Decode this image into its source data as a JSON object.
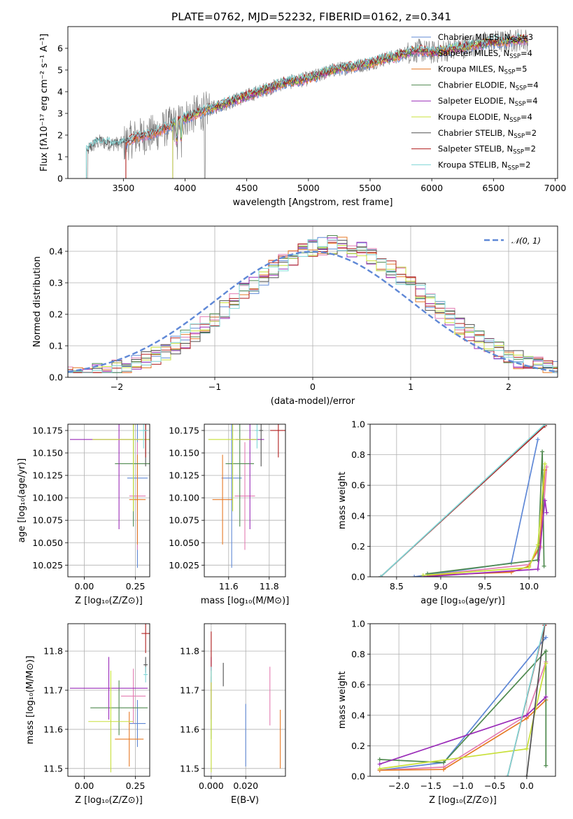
{
  "colors": {
    "chabrier_miles": "#5f88d6",
    "salpeter_miles": "#e37cb2",
    "kroupa_miles": "#e67a26",
    "chabrier_elodie": "#4f8a4f",
    "salpeter_elodie": "#9a2bb8",
    "kroupa_elodie": "#c8e03a",
    "chabrier_stelib": "#505050",
    "salpeter_stelib": "#b01e1e",
    "kroupa_stelib": "#7ed6d6",
    "data": "#808080",
    "normal": "#5f88d6"
  },
  "chart_data": [
    {
      "id": "spectrum",
      "type": "line",
      "title": "PLATE=0762, MJD=52232, FIBERID=0162, z=0.341",
      "xlabel": "wavelength [Angstrom, rest frame]",
      "ylabel": "Flux [fλ10⁻¹⁷ erg cm⁻² s⁻¹ A⁻¹]",
      "xlim": [
        3050,
        7020
      ],
      "ylim": [
        0,
        7
      ],
      "xticks": [
        3500,
        4000,
        4500,
        5000,
        5500,
        6000,
        6500,
        7000
      ],
      "yticks": [
        0,
        1,
        2,
        3,
        4,
        5,
        6
      ],
      "grid": false,
      "continuum": [
        [
          3200,
          1.3
        ],
        [
          3300,
          1.7
        ],
        [
          3400,
          1.6
        ],
        [
          3500,
          1.6
        ],
        [
          3600,
          1.9
        ],
        [
          3700,
          2.0
        ],
        [
          3800,
          2.2
        ],
        [
          3900,
          2.5
        ],
        [
          4000,
          2.8
        ],
        [
          4100,
          3.0
        ],
        [
          4200,
          3.2
        ],
        [
          4300,
          3.4
        ],
        [
          4400,
          3.6
        ],
        [
          4500,
          3.8
        ],
        [
          4600,
          4.0
        ],
        [
          4700,
          4.2
        ],
        [
          4800,
          4.4
        ],
        [
          4900,
          4.5
        ],
        [
          5000,
          4.6
        ],
        [
          5100,
          4.8
        ],
        [
          5200,
          5.0
        ],
        [
          5300,
          5.1
        ],
        [
          5400,
          5.2
        ],
        [
          5500,
          5.3
        ],
        [
          5600,
          5.5
        ],
        [
          5700,
          5.6
        ],
        [
          5800,
          5.8
        ],
        [
          5900,
          5.9
        ],
        [
          6000,
          5.8
        ],
        [
          6100,
          5.9
        ],
        [
          6200,
          6.0
        ],
        [
          6300,
          6.1
        ],
        [
          6400,
          6.2
        ],
        [
          6500,
          6.3
        ],
        [
          6600,
          6.3
        ],
        [
          6700,
          6.4
        ],
        [
          6780,
          6.4
        ]
      ],
      "legend": [
        {
          "label": "Chabrier MILES, N",
          "sub": "SSP",
          "suffix": "=3",
          "color_key": "chabrier_miles"
        },
        {
          "label": "Salpeter MILES, N",
          "sub": "SSP",
          "suffix": "=4",
          "color_key": "salpeter_miles"
        },
        {
          "label": "Kroupa MILES, N",
          "sub": "SSP",
          "suffix": "=5",
          "color_key": "kroupa_miles"
        },
        {
          "label": "Chabrier ELODIE, N",
          "sub": "SSP",
          "suffix": "=4",
          "color_key": "chabrier_elodie"
        },
        {
          "label": "Salpeter ELODIE, N",
          "sub": "SSP",
          "suffix": "=4",
          "color_key": "salpeter_elodie"
        },
        {
          "label": "Kroupa ELODIE, N",
          "sub": "SSP",
          "suffix": "=4",
          "color_key": "kroupa_elodie"
        },
        {
          "label": "Chabrier STELIB, N",
          "sub": "SSP",
          "suffix": "=2",
          "color_key": "chabrier_stelib"
        },
        {
          "label": "Salpeter STELIB, N",
          "sub": "SSP",
          "suffix": "=2",
          "color_key": "salpeter_stelib"
        },
        {
          "label": "Kroupa STELIB, N",
          "sub": "SSP",
          "suffix": "=2",
          "color_key": "kroupa_stelib"
        }
      ]
    },
    {
      "id": "residuals",
      "type": "step-histogram",
      "xlabel": "(data-model)/error",
      "ylabel": "Normed distribution",
      "xlim": [
        -2.5,
        2.5
      ],
      "ylim": [
        0,
        0.48
      ],
      "xticks": [
        -2,
        -1,
        0,
        1,
        2
      ],
      "yticks": [
        0.0,
        0.1,
        0.2,
        0.3,
        0.4
      ],
      "grid": true,
      "legend": [
        {
          "label": "𝒩(0, 1)",
          "color_key": "normal"
        }
      ],
      "normal": {
        "mean": 0,
        "sigma": 1
      }
    },
    {
      "id": "age_vs_Z",
      "type": "errorbar",
      "xlabel": "Z [log₁₀(Z/Z⊙)]",
      "ylabel": "age  [log₁₀(age/yr)]",
      "xlim": [
        -0.08,
        0.32
      ],
      "ylim": [
        10.012,
        10.182
      ],
      "xticks": [
        0.0,
        0.25
      ],
      "yticks": [
        10.025,
        10.05,
        10.075,
        10.1,
        10.125,
        10.15,
        10.175
      ],
      "grid": true,
      "points": [
        {
          "k": "chabrier_miles",
          "x": 0.26,
          "y": 10.122,
          "xerr": 0.05,
          "yerr": 0.1
        },
        {
          "k": "salpeter_miles",
          "x": 0.26,
          "y": 10.102,
          "xerr": 0.04,
          "yerr": 0.06
        },
        {
          "k": "kroupa_miles",
          "x": 0.26,
          "y": 10.098,
          "xerr": 0.04,
          "yerr": 0.05
        },
        {
          "k": "chabrier_elodie",
          "x": 0.24,
          "y": 10.138,
          "xerr": 0.09,
          "yerr": 0.07
        },
        {
          "k": "salpeter_elodie",
          "x": 0.17,
          "y": 10.165,
          "xerr": 0.24,
          "yerr": 0.1
        },
        {
          "k": "kroupa_elodie",
          "x": 0.24,
          "y": 10.165,
          "xerr": 0.2,
          "yerr": 0.08
        },
        {
          "k": "chabrier_stelib",
          "x": 0.3,
          "y": 10.175,
          "xerr": 0.01,
          "yerr": 0.04
        },
        {
          "k": "salpeter_stelib",
          "x": 0.3,
          "y": 10.175,
          "xerr": 0.01,
          "yerr": 0.03
        },
        {
          "k": "kroupa_stelib",
          "x": 0.29,
          "y": 10.175,
          "xerr": 0.02,
          "yerr": 0.02
        }
      ]
    },
    {
      "id": "age_vs_mass",
      "type": "errorbar",
      "xlabel": "mass [log₁₀(M/M⊙)]",
      "ylabel": "",
      "xlim": [
        11.48,
        11.88
      ],
      "ylim": [
        10.012,
        10.182
      ],
      "xticks": [
        11.6,
        11.8
      ],
      "yticks": [
        10.025,
        10.05,
        10.075,
        10.1,
        10.125,
        10.15,
        10.175
      ],
      "grid": true,
      "points": [
        {
          "k": "chabrier_miles",
          "x": 11.615,
          "y": 10.122,
          "xerr": 0.05,
          "yerr": 0.1
        },
        {
          "k": "salpeter_miles",
          "x": 11.68,
          "y": 10.102,
          "xerr": 0.05,
          "yerr": 0.06
        },
        {
          "k": "kroupa_miles",
          "x": 11.57,
          "y": 10.098,
          "xerr": 0.05,
          "yerr": 0.05
        },
        {
          "k": "chabrier_elodie",
          "x": 11.655,
          "y": 10.138,
          "xerr": 0.07,
          "yerr": 0.07
        },
        {
          "k": "salpeter_elodie",
          "x": 11.705,
          "y": 10.165,
          "xerr": 0.07,
          "yerr": 0.1
        },
        {
          "k": "kroupa_elodie",
          "x": 11.62,
          "y": 10.165,
          "xerr": 0.12,
          "yerr": 0.08
        },
        {
          "k": "chabrier_stelib",
          "x": 11.76,
          "y": 10.175,
          "xerr": 0.01,
          "yerr": 0.04
        },
        {
          "k": "salpeter_stelib",
          "x": 11.845,
          "y": 10.175,
          "xerr": 0.04,
          "yerr": 0.03
        },
        {
          "k": "kroupa_stelib",
          "x": 11.74,
          "y": 10.175,
          "xerr": 0.01,
          "yerr": 0.02
        }
      ]
    },
    {
      "id": "weight_vs_age",
      "type": "line",
      "xlabel": "age  [log₁₀(age/yr)]",
      "ylabel": "mass weight",
      "xlim": [
        8.2,
        10.3
      ],
      "ylim": [
        0,
        1.0
      ],
      "xticks": [
        8.5,
        9.0,
        9.5,
        10.0
      ],
      "yticks": [
        0.0,
        0.2,
        0.4,
        0.6,
        0.8,
        1.0
      ],
      "grid": true,
      "series": [
        {
          "k": "chabrier_miles",
          "x": [
            8.7,
            9.8,
            10.1
          ],
          "y": [
            0.0,
            0.09,
            0.9
          ]
        },
        {
          "k": "salpeter_miles",
          "x": [
            8.85,
            10.0,
            10.13,
            10.2
          ],
          "y": [
            0.01,
            0.08,
            0.19,
            0.72
          ]
        },
        {
          "k": "kroupa_miles",
          "x": [
            8.85,
            9.8,
            10.0,
            10.12,
            10.18
          ],
          "y": [
            0.01,
            0.03,
            0.07,
            0.2,
            0.7
          ]
        },
        {
          "k": "chabrier_elodie",
          "x": [
            8.85,
            10.1,
            10.15,
            10.17
          ],
          "y": [
            0.02,
            0.11,
            0.82,
            0.07
          ]
        },
        {
          "k": "salpeter_elodie",
          "x": [
            8.8,
            10.1,
            10.18,
            10.2
          ],
          "y": [
            0.0,
            0.05,
            0.5,
            0.42
          ]
        },
        {
          "k": "kroupa_elodie",
          "x": [
            8.8,
            10.0,
            10.1,
            10.18
          ],
          "y": [
            0.01,
            0.06,
            0.21,
            0.74
          ]
        },
        {
          "k": "chabrier_stelib",
          "x": [
            8.32,
            10.18
          ],
          "y": [
            0.0,
            0.99
          ]
        },
        {
          "k": "salpeter_stelib",
          "x": [
            8.32,
            10.18
          ],
          "y": [
            0.0,
            0.99
          ]
        },
        {
          "k": "kroupa_stelib",
          "x": [
            8.32,
            10.18
          ],
          "y": [
            0.0,
            1.0
          ]
        }
      ]
    },
    {
      "id": "mass_vs_Z",
      "type": "errorbar",
      "xlabel": "Z [log₁₀(Z/Z⊙)]",
      "ylabel": "mass [log₁₀(M/M⊙)]",
      "xlim": [
        -0.08,
        0.32
      ],
      "ylim": [
        11.48,
        11.87
      ],
      "xticks": [
        0.0,
        0.25
      ],
      "yticks": [
        11.5,
        11.6,
        11.7,
        11.8
      ],
      "grid": true,
      "points": [
        {
          "k": "chabrier_miles",
          "x": 0.26,
          "y": 11.615,
          "xerr": 0.04,
          "yerr": 0.06
        },
        {
          "k": "salpeter_miles",
          "x": 0.24,
          "y": 11.685,
          "xerr": 0.06,
          "yerr": 0.07
        },
        {
          "k": "kroupa_miles",
          "x": 0.22,
          "y": 11.575,
          "xerr": 0.07,
          "yerr": 0.07
        },
        {
          "k": "chabrier_elodie",
          "x": 0.17,
          "y": 11.655,
          "xerr": 0.14,
          "yerr": 0.07
        },
        {
          "k": "salpeter_elodie",
          "x": 0.12,
          "y": 11.705,
          "xerr": 0.19,
          "yerr": 0.08
        },
        {
          "k": "kroupa_elodie",
          "x": 0.13,
          "y": 11.62,
          "xerr": 0.11,
          "yerr": 0.13
        },
        {
          "k": "chabrier_stelib",
          "x": 0.3,
          "y": 11.765,
          "xerr": 0.01,
          "yerr": 0.02
        },
        {
          "k": "salpeter_stelib",
          "x": 0.3,
          "y": 11.845,
          "xerr": 0.02,
          "yerr": 0.05
        },
        {
          "k": "kroupa_stelib",
          "x": 0.3,
          "y": 11.74,
          "xerr": 0.01,
          "yerr": 0.02
        }
      ]
    },
    {
      "id": "mass_vs_EBV",
      "type": "errorbar",
      "xlabel": "E(B-V)",
      "ylabel": "",
      "xlim": [
        -0.004,
        0.043
      ],
      "ylim": [
        11.48,
        11.87
      ],
      "xticks": [
        0.0,
        0.02
      ],
      "yticks": [
        11.5,
        11.6,
        11.7,
        11.8
      ],
      "grid": true,
      "points": [
        {
          "k": "chabrier_miles",
          "x": 0.02,
          "y": 11.585,
          "xerr": 0,
          "yerr": 0.08
        },
        {
          "k": "salpeter_miles",
          "x": 0.034,
          "y": 11.685,
          "xerr": 0,
          "yerr": 0.075
        },
        {
          "k": "kroupa_miles",
          "x": 0.04,
          "y": 11.575,
          "xerr": 0,
          "yerr": 0.075
        },
        {
          "k": "chabrier_elodie",
          "x": 0.0,
          "y": 11.655,
          "xerr": 0,
          "yerr": 0.08
        },
        {
          "k": "salpeter_elodie",
          "x": 0.0,
          "y": 11.705,
          "xerr": 0,
          "yerr": 0.08
        },
        {
          "k": "kroupa_elodie",
          "x": 0.0,
          "y": 11.62,
          "xerr": 0,
          "yerr": 0.13
        },
        {
          "k": "chabrier_stelib",
          "x": 0.007,
          "y": 11.74,
          "xerr": 0,
          "yerr": 0.03
        },
        {
          "k": "salpeter_stelib",
          "x": 0.0,
          "y": 11.8,
          "xerr": 0,
          "yerr": 0.05
        },
        {
          "k": "kroupa_stelib",
          "x": 0.0,
          "y": 11.74,
          "xerr": 0,
          "yerr": 0.02
        }
      ]
    },
    {
      "id": "weight_vs_Z",
      "type": "line",
      "xlabel": "Z [log₁₀(Z/Z⊙)]",
      "ylabel": "mass weight",
      "xlim": [
        -2.45,
        0.45
      ],
      "ylim": [
        0,
        1.0
      ],
      "xticks": [
        -2.0,
        -1.5,
        -1.0,
        -0.5,
        0.0
      ],
      "yticks": [
        0.0,
        0.2,
        0.4,
        0.6,
        0.8,
        1.0
      ],
      "grid": true,
      "series": [
        {
          "k": "chabrier_miles",
          "x": [
            -2.3,
            -1.3,
            0.3
          ],
          "y": [
            0.04,
            0.09,
            0.91
          ]
        },
        {
          "k": "salpeter_miles",
          "x": [
            -2.3,
            -1.3,
            0.0,
            0.3
          ],
          "y": [
            0.04,
            0.06,
            0.4,
            0.75
          ]
        },
        {
          "k": "kroupa_miles",
          "x": [
            -2.3,
            -1.3,
            0.0,
            0.3
          ],
          "y": [
            0.04,
            0.045,
            0.38,
            0.5
          ]
        },
        {
          "k": "chabrier_elodie",
          "x": [
            -2.3,
            -1.3,
            0.3,
            0.3
          ],
          "y": [
            0.11,
            0.09,
            0.82,
            0.07
          ]
        },
        {
          "k": "salpeter_elodie",
          "x": [
            -2.3,
            0.0,
            0.3
          ],
          "y": [
            0.08,
            0.4,
            0.52
          ]
        },
        {
          "k": "kroupa_elodie",
          "x": [
            -2.3,
            0.0,
            0.3
          ],
          "y": [
            0.05,
            0.18,
            0.74
          ]
        },
        {
          "k": "chabrier_stelib",
          "x": [
            0.0,
            0.28
          ],
          "y": [
            0.0,
            0.99
          ]
        },
        {
          "k": "salpeter_stelib",
          "x": [
            -0.3,
            0.28
          ],
          "y": [
            0.0,
            0.99
          ]
        },
        {
          "k": "kroupa_stelib",
          "x": [
            -0.3,
            0.28
          ],
          "y": [
            0.0,
            1.0
          ]
        }
      ]
    }
  ]
}
